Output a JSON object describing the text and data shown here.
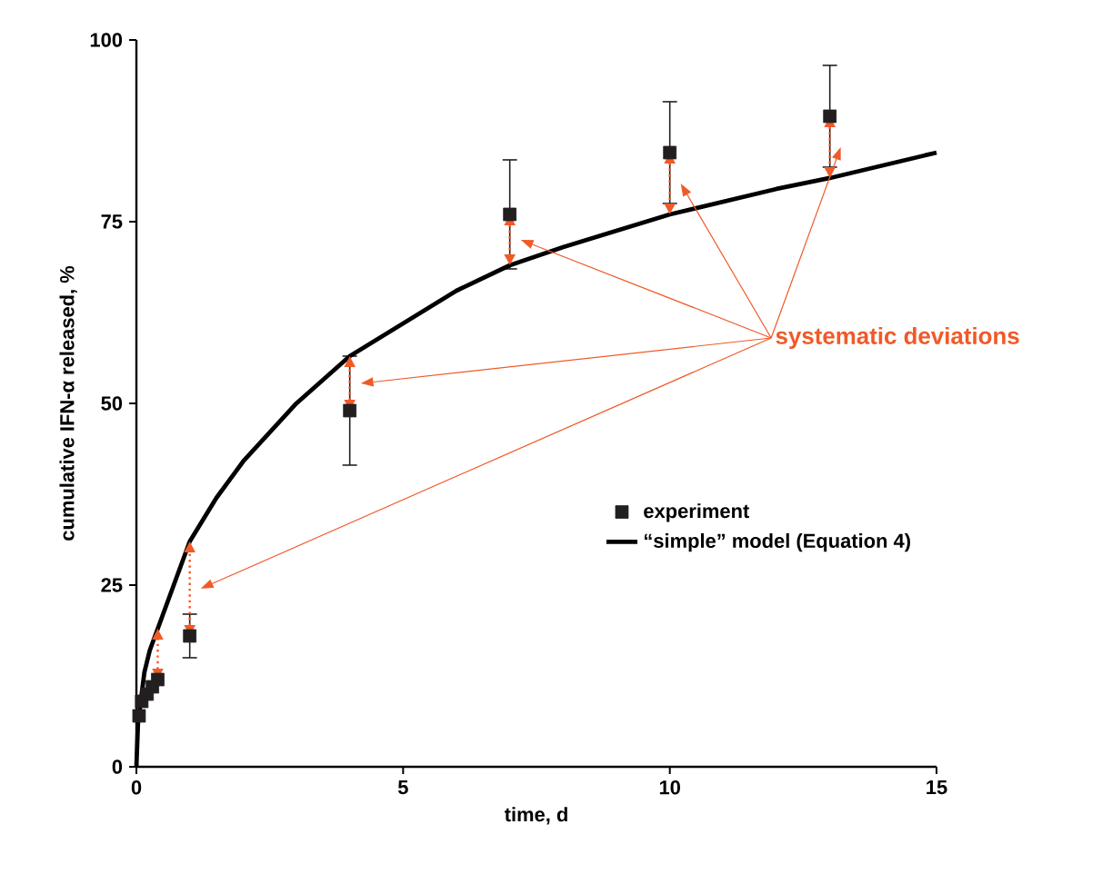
{
  "chart_data": {
    "type": "scatter",
    "xlabel": "time, d",
    "ylabel": "cumulative IFN-α released, %",
    "xlim": [
      0,
      15
    ],
    "ylim": [
      0,
      100
    ],
    "xticks": [
      0,
      5,
      10,
      15
    ],
    "yticks": [
      0,
      25,
      50,
      75,
      100
    ],
    "legend": "right",
    "grid": false,
    "series": [
      {
        "name": "experiment",
        "marker": "square",
        "color": "#231f20",
        "x": [
          0.05,
          0.1,
          0.2,
          0.3,
          0.4,
          1,
          4,
          7,
          10,
          13
        ],
        "values": [
          7,
          9,
          10,
          11,
          12,
          18,
          49,
          76,
          84.5,
          89.5
        ],
        "errors": [
          null,
          null,
          null,
          null,
          null,
          3,
          7.5,
          7.5,
          7,
          7
        ]
      },
      {
        "name": "“simple” model (Equation 4)",
        "type": "line",
        "marker": "none",
        "color": "#000000",
        "x": [
          0,
          0.03,
          0.15,
          0.25,
          0.4,
          0.6,
          1,
          1.5,
          2,
          3,
          4,
          5,
          6,
          7,
          8,
          10,
          12,
          13,
          15
        ],
        "values": [
          0,
          6,
          13,
          16,
          19,
          23,
          31,
          37,
          42,
          50,
          56.5,
          61,
          65.5,
          69,
          71.5,
          76,
          79.5,
          81,
          84.5
        ]
      }
    ],
    "annotations": [
      "systematic deviations"
    ]
  }
}
